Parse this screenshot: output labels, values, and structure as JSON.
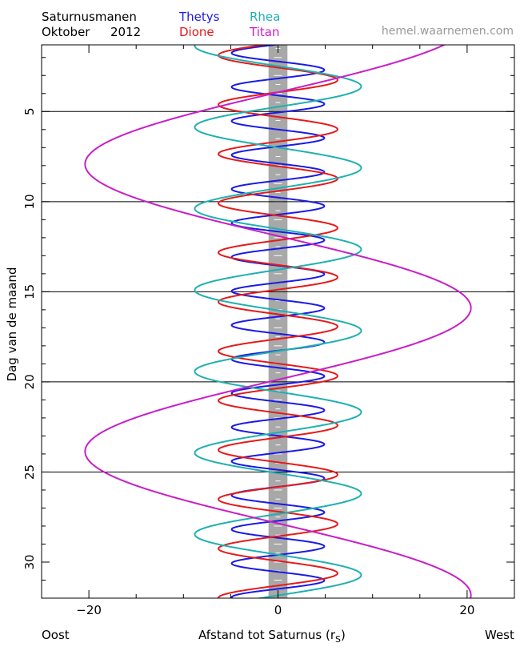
{
  "header": {
    "title": "Saturnusmanen",
    "month": "Oktober",
    "year": "2012",
    "site": "hemel.waarnemen.com"
  },
  "legend": [
    {
      "name": "Thetys",
      "color": "#1a1ae6"
    },
    {
      "name": "Dione",
      "color": "#e61a1a"
    },
    {
      "name": "Rhea",
      "color": "#1fb0b0"
    },
    {
      "name": "Titan",
      "color": "#c81ec8"
    }
  ],
  "footer": {
    "left": "Oost",
    "right": "West",
    "xlabel_main": "Afstand tot Saturnus (r",
    "xlabel_sub": "S",
    "xlabel_end": ")"
  },
  "chart_data": {
    "type": "line",
    "xlabel": "Afstand tot Saturnus (rS)",
    "ylabel": "Dag van de maand",
    "xlim": [
      -25,
      25
    ],
    "ylim": [
      1.3,
      32
    ],
    "y_inverted": true,
    "x_ticks": [
      -20,
      0,
      20
    ],
    "x_tick_labels": [
      "−20",
      "0",
      "20"
    ],
    "y_ticks": [
      5,
      10,
      15,
      20,
      25,
      30
    ],
    "y_tick_labels": [
      "5",
      "10",
      "15",
      "20",
      "25",
      "30"
    ],
    "grid_days": [
      5,
      10,
      15,
      20,
      25
    ],
    "planet_band": {
      "color": "#a8a8a8",
      "halfwidth": 1.0
    },
    "series": [
      {
        "name": "Thetys",
        "color": "#1a1ae6",
        "amplitude": 4.9,
        "period_days": 1.888,
        "phase_day": 1.75,
        "direction": -1
      },
      {
        "name": "Dione",
        "color": "#e61a1a",
        "amplitude": 6.3,
        "period_days": 2.737,
        "phase_day": 1.88,
        "direction": -1
      },
      {
        "name": "Rhea",
        "color": "#1fb0b0",
        "amplitude": 8.8,
        "period_days": 4.518,
        "phase_day": 1.35,
        "direction": -1
      },
      {
        "name": "Titan",
        "color": "#c81ec8",
        "amplitude": 20.4,
        "period_days": 15.945,
        "phase_day": 7.92,
        "direction": -1
      }
    ]
  }
}
